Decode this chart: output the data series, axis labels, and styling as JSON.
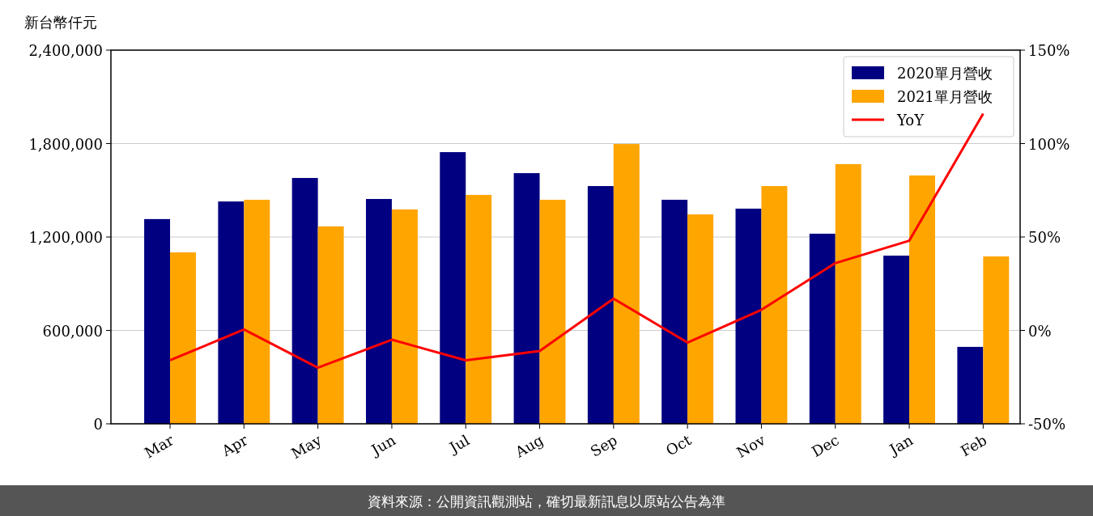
{
  "chart_data": {
    "type": "bar",
    "ylabel": "新台幣仟元",
    "categories": [
      "Mar",
      "Apr",
      "May",
      "Jun",
      "Jul",
      "Aug",
      "Sep",
      "Oct",
      "Nov",
      "Dec",
      "Jan",
      "Feb"
    ],
    "series": [
      {
        "name": "2020單月營收",
        "color": "#000080",
        "values": [
          1315000,
          1428000,
          1579000,
          1444000,
          1745000,
          1610000,
          1527000,
          1439000,
          1382000,
          1221000,
          1080000,
          494000
        ]
      },
      {
        "name": "2021單月營收",
        "color": "#ffa500",
        "values": [
          1101000,
          1439000,
          1268000,
          1377000,
          1470000,
          1439000,
          1797000,
          1345000,
          1527000,
          1668000,
          1595000,
          1075000
        ]
      },
      {
        "name": "YoY",
        "type": "line",
        "axis": "y2",
        "color": "#ff0000",
        "values": [
          -16,
          0.5,
          -20,
          -5,
          -16,
          -11,
          17,
          -6.5,
          11,
          36,
          48,
          116
        ]
      }
    ],
    "ylim": [
      0,
      2400000
    ],
    "yticks": [
      0,
      {
        "value": 600000,
        "label": "600,000"
      },
      {
        "value": 1200000,
        "label": "1,200,000"
      },
      {
        "value": 1800000,
        "label": "1,800,000"
      },
      {
        "value": 2400000,
        "label": "2,400,000"
      }
    ],
    "y2lim": [
      -50,
      150
    ],
    "y2ticks": [
      {
        "value": -50,
        "label": "-50%"
      },
      {
        "value": 0,
        "label": "0%"
      },
      {
        "value": 50,
        "label": "50%"
      },
      {
        "value": 100,
        "label": "100%"
      },
      {
        "value": 150,
        "label": "150%"
      }
    ],
    "grid": "y",
    "legend": "top right",
    "annotations": [
      "資料來源：公開資訊觀測站，確切最新訊息以原站公告為準"
    ]
  }
}
